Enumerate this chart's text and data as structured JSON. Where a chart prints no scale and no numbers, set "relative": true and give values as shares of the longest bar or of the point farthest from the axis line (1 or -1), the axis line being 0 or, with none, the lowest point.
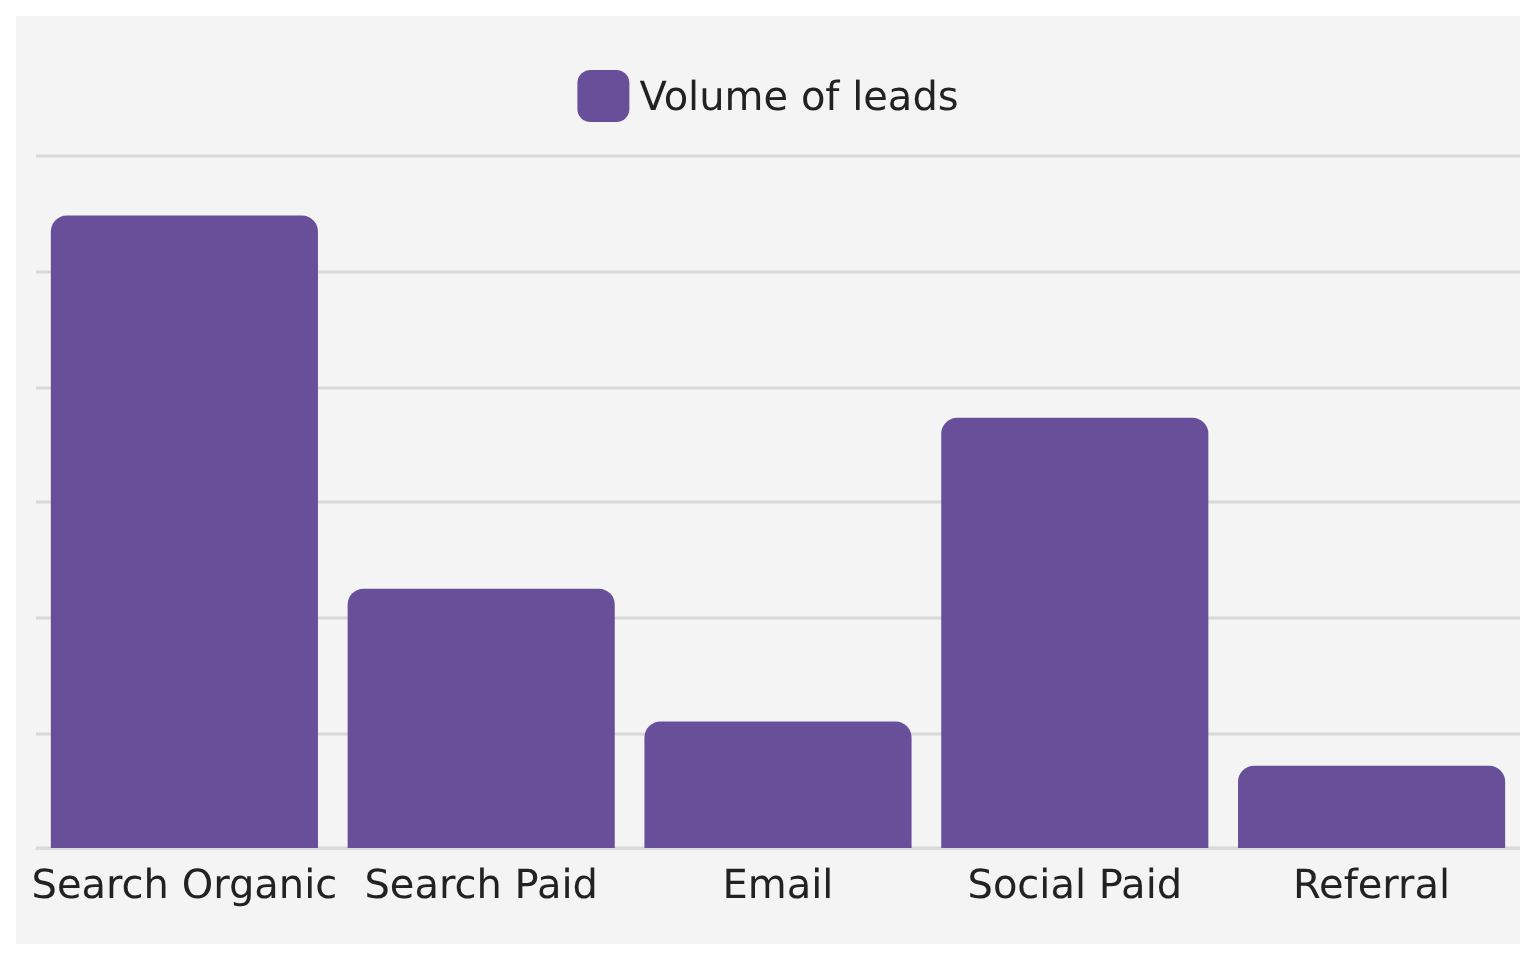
{
  "chart_data": {
    "type": "bar",
    "relative": true,
    "categories": [
      "Search Organic",
      "Search Paid",
      "Email",
      "Social Paid",
      "Referral"
    ],
    "series": [
      {
        "name": "Volume of leads",
        "color": "#674f9a",
        "values": [
          1,
          0.41,
          0.2,
          0.68,
          0.13
        ]
      }
    ],
    "grid": "y",
    "legend": "top"
  }
}
